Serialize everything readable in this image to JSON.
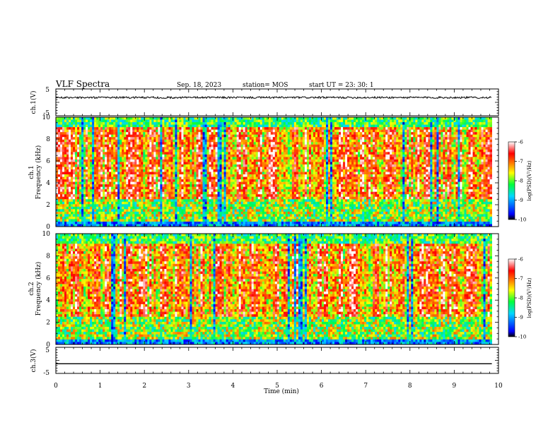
{
  "header": {
    "title": "VLF Spectra",
    "date": "Sep. 18, 2023",
    "station": "station= MOS",
    "start": "start  UT =  23: 30: 1"
  },
  "chart_data": [
    {
      "type": "line",
      "panel": "ch1-voltage",
      "ylabel": "ch.1(V)",
      "ylim": [
        -5,
        5
      ],
      "yticks": [
        "5",
        "-5"
      ],
      "xlim": [
        0,
        10
      ],
      "level": 1.8
    },
    {
      "type": "heatmap",
      "panel": "ch1-spectrogram",
      "ylabel": [
        "ch.1",
        "Frequency (kHz)"
      ],
      "ylim": [
        0,
        10
      ],
      "yticks": [
        "0",
        "2",
        "4",
        "6",
        "8",
        "10"
      ],
      "xlim": [
        0,
        10
      ],
      "data_end_min": 9.85,
      "colorbar": {
        "label": "log(PSD)(V²/Hz)",
        "range": [
          -10,
          -6
        ],
        "ticks": [
          "-6",
          "-7",
          "-8",
          "-9",
          "-10"
        ]
      }
    },
    {
      "type": "heatmap",
      "panel": "ch2-spectrogram",
      "ylabel": [
        "ch.2",
        "Frequency (kHz)"
      ],
      "ylim": [
        0,
        10
      ],
      "yticks": [
        "0",
        "2",
        "4",
        "6",
        "8",
        "10"
      ],
      "xlim": [
        0,
        10
      ],
      "data_end_min": 9.85,
      "colorbar": {
        "label": "log(PSD)(V²/Hz)",
        "range": [
          -10,
          -6
        ],
        "ticks": [
          "-6",
          "-7",
          "-8",
          "-9",
          "-10"
        ]
      }
    },
    {
      "type": "line",
      "panel": "ch3-voltage",
      "ylabel": "ch.3(V)",
      "ylim": [
        -5,
        5
      ],
      "yticks": [
        "5",
        "-5"
      ],
      "xlim": [
        0,
        10
      ],
      "level": -1.3
    }
  ],
  "xaxis": {
    "label": "Time (min)",
    "ticks": [
      "0",
      "1",
      "2",
      "3",
      "4",
      "5",
      "6",
      "7",
      "8",
      "9",
      "10"
    ]
  },
  "colors": {
    "colormap": [
      "#000000",
      "#0000ff",
      "#00d8ff",
      "#00ff3c",
      "#ffff00",
      "#ff8000",
      "#ff0000",
      "#ffffff"
    ]
  }
}
